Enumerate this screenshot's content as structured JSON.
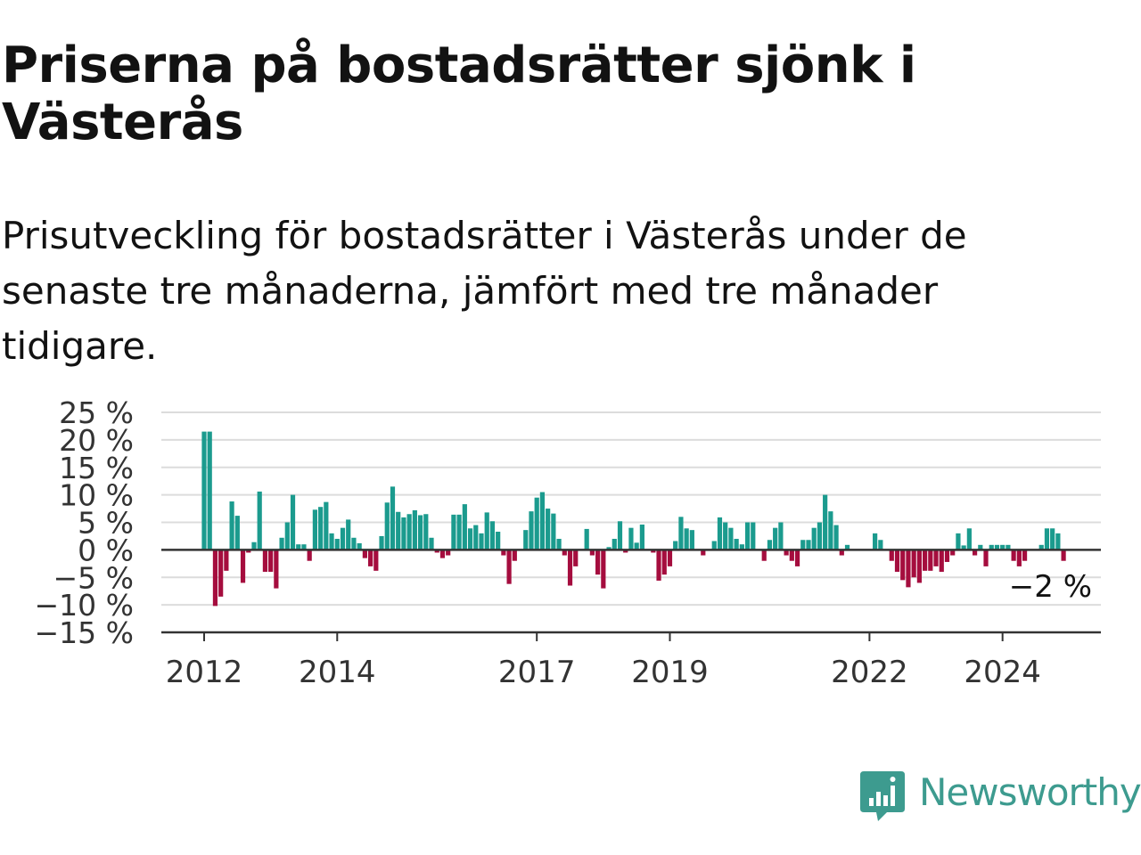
{
  "header": {
    "title": "Priserna på bostadsrätter sjönk i Västerås",
    "subtitle": "Prisutveckling för bostadsrätter i Västerås under de senaste tre månaderna, jämfört med tre månader tidigare."
  },
  "brand": {
    "name": "Newsworthy",
    "color": "#3d9b8f"
  },
  "colors": {
    "positive": "#1b9b8e",
    "negative": "#a50d3e",
    "grid": "#dcdcdc",
    "axis": "#333333",
    "text": "#121212"
  },
  "chart_data": {
    "type": "bar",
    "title": "Priserna på bostadsrätter sjönk i Västerås",
    "subtitle": "Prisutveckling för bostadsrätter i Västerås under de senaste tre månaderna, jämfört med tre månader tidigare.",
    "xlabel": "",
    "ylabel": "",
    "unit": "%",
    "ylim": [
      -15,
      25
    ],
    "y_ticks": [
      25,
      20,
      15,
      10,
      5,
      0,
      -5,
      -10,
      -15
    ],
    "y_tick_labels": [
      "25 %",
      "20 %",
      "15 %",
      "10 %",
      "5 %",
      "0 %",
      "−5 %",
      "−10 %",
      "−15 %"
    ],
    "x_start": "2012-01",
    "x_end": "2025-01",
    "x_ticks": [
      "2012",
      "2014",
      "2017",
      "2019",
      "2022",
      "2024"
    ],
    "grid": true,
    "legend": "none",
    "last_value_label": "−2 %",
    "x": [
      "2012-01",
      "2012-02",
      "2012-03",
      "2012-04",
      "2012-05",
      "2012-06",
      "2012-07",
      "2012-08",
      "2012-09",
      "2012-10",
      "2012-11",
      "2012-12",
      "2013-01",
      "2013-02",
      "2013-03",
      "2013-04",
      "2013-05",
      "2013-06",
      "2013-07",
      "2013-08",
      "2013-09",
      "2013-10",
      "2013-11",
      "2013-12",
      "2014-01",
      "2014-02",
      "2014-03",
      "2014-04",
      "2014-05",
      "2014-06",
      "2014-07",
      "2014-08",
      "2014-09",
      "2014-10",
      "2014-11",
      "2014-12",
      "2015-01",
      "2015-02",
      "2015-03",
      "2015-04",
      "2015-05",
      "2015-06",
      "2015-07",
      "2015-08",
      "2015-09",
      "2015-10",
      "2015-11",
      "2015-12",
      "2016-01",
      "2016-02",
      "2016-03",
      "2016-04",
      "2016-05",
      "2016-06",
      "2016-07",
      "2016-08",
      "2016-09",
      "2016-10",
      "2016-11",
      "2016-12",
      "2017-01",
      "2017-02",
      "2017-03",
      "2017-04",
      "2017-05",
      "2017-06",
      "2017-07",
      "2017-08",
      "2017-09",
      "2017-10",
      "2017-11",
      "2017-12",
      "2018-01",
      "2018-02",
      "2018-03",
      "2018-04",
      "2018-05",
      "2018-06",
      "2018-07",
      "2018-08",
      "2018-09",
      "2018-10",
      "2018-11",
      "2018-12",
      "2019-01",
      "2019-02",
      "2019-03",
      "2019-04",
      "2019-05",
      "2019-06",
      "2019-07",
      "2019-08",
      "2019-09",
      "2019-10",
      "2019-11",
      "2019-12",
      "2020-01",
      "2020-02",
      "2020-03",
      "2020-04",
      "2020-05",
      "2020-06",
      "2020-07",
      "2020-08",
      "2020-09",
      "2020-10",
      "2020-11",
      "2020-12",
      "2021-01",
      "2021-02",
      "2021-03",
      "2021-04",
      "2021-05",
      "2021-06",
      "2021-07",
      "2021-08",
      "2021-09",
      "2021-10",
      "2021-11",
      "2021-12",
      "2022-01",
      "2022-02",
      "2022-03",
      "2022-04",
      "2022-05",
      "2022-06",
      "2022-07",
      "2022-08",
      "2022-09",
      "2022-10",
      "2022-11",
      "2022-12",
      "2023-01",
      "2023-02",
      "2023-03",
      "2023-04",
      "2023-05",
      "2023-06",
      "2023-07",
      "2023-08",
      "2023-09",
      "2023-10",
      "2023-11",
      "2023-12",
      "2024-01",
      "2024-02",
      "2024-03",
      "2024-04",
      "2024-05",
      "2024-06",
      "2024-07",
      "2024-08",
      "2024-09",
      "2024-10",
      "2024-11",
      "2024-12"
    ],
    "values": [
      21.5,
      21.5,
      -10.2,
      -8.5,
      -3.8,
      8.8,
      6.2,
      -6.0,
      -0.5,
      1.4,
      10.6,
      -4.0,
      -4.0,
      -7.0,
      2.2,
      5.0,
      10.0,
      1.0,
      1.0,
      -2.0,
      7.3,
      7.8,
      8.7,
      3.0,
      2.0,
      4.0,
      5.5,
      2.2,
      1.2,
      -1.5,
      -3.0,
      -3.8,
      2.5,
      8.6,
      11.5,
      6.9,
      5.9,
      6.5,
      7.2,
      6.3,
      6.5,
      2.2,
      -0.5,
      -1.5,
      -1.0,
      6.4,
      6.4,
      8.3,
      3.9,
      4.5,
      3.0,
      6.8,
      5.2,
      3.3,
      -1.0,
      -6.2,
      -2.0,
      null,
      3.6,
      7.0,
      9.5,
      10.5,
      7.5,
      6.6,
      2.0,
      -1.0,
      -6.5,
      -3.0,
      null,
      3.8,
      -1.0,
      -4.5,
      -7.0,
      0.5,
      2.0,
      5.2,
      -0.5,
      4.0,
      1.3,
      4.6,
      null,
      -0.5,
      -5.6,
      -4.5,
      -3.0,
      1.6,
      6.0,
      3.9,
      3.6,
      null,
      -1.0,
      null,
      1.6,
      5.9,
      5.0,
      4.0,
      2.0,
      1.0,
      5.0,
      5.0,
      null,
      -2.0,
      1.8,
      4.0,
      5.0,
      -1.0,
      -2.0,
      -3.0,
      1.8,
      1.8,
      4.0,
      5.0,
      10.0,
      7.0,
      4.5,
      -1.0,
      0.9,
      null,
      null,
      null,
      null,
      3.0,
      1.8,
      null,
      -2.0,
      -4.0,
      -5.5,
      -6.8,
      -5.0,
      -6.0,
      -3.8,
      -3.8,
      -3.0,
      -4.0,
      -2.2,
      -1.0,
      3.0,
      0.8,
      3.9,
      -1.0,
      0.9,
      -3.0,
      0.9,
      0.9,
      0.9,
      0.9,
      -2.0,
      -3.0,
      -2.0,
      null,
      null,
      0.9,
      3.9,
      3.9,
      3.0,
      -2.0
    ]
  }
}
